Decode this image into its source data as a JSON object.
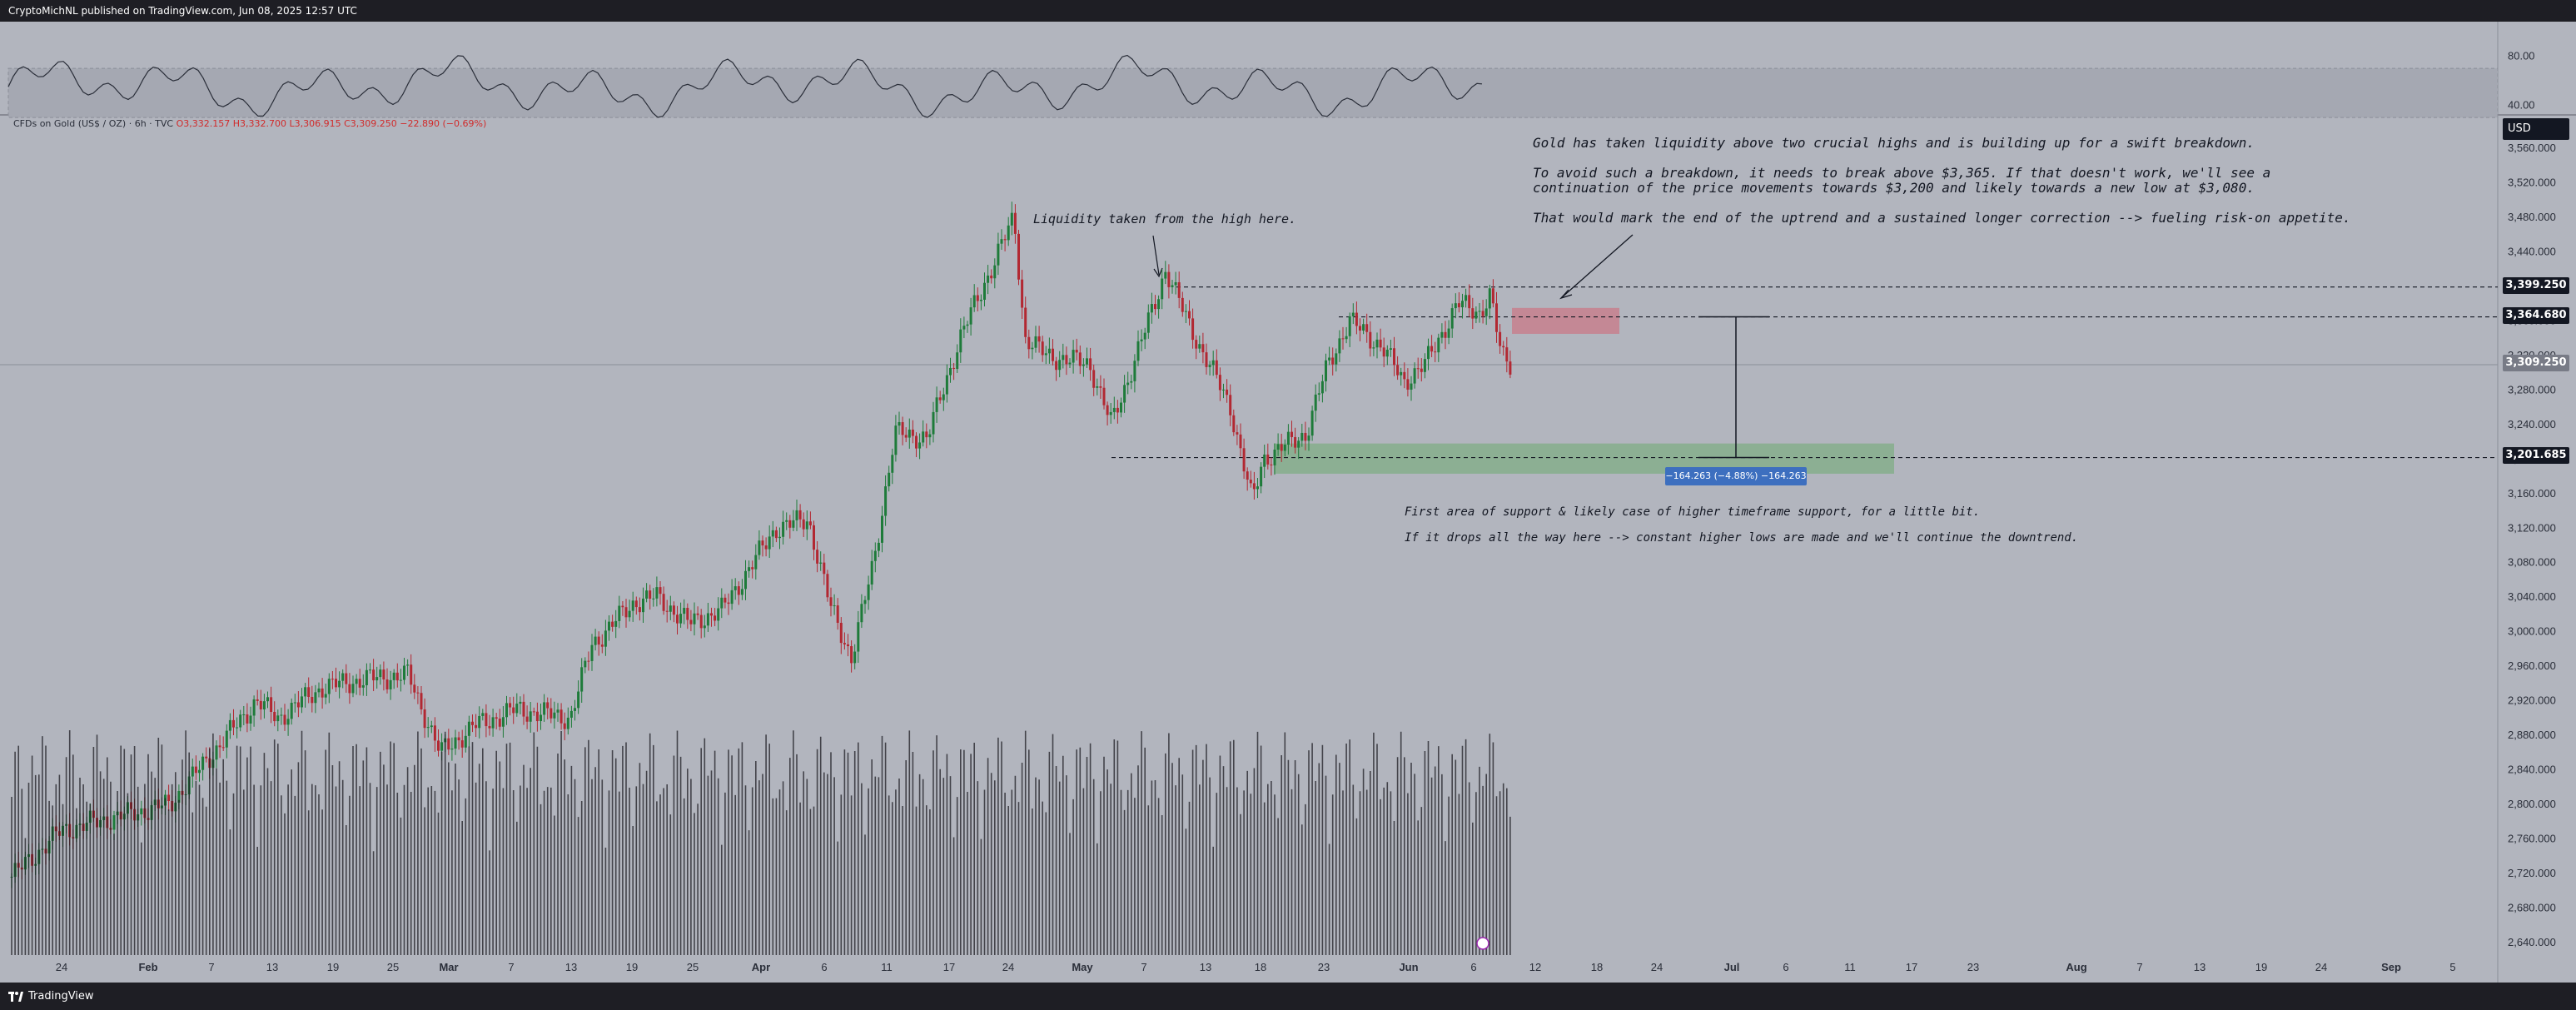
{
  "header": {
    "published_text": "CryptoMichNL published on TradingView.com, Jun 08, 2025 12:57 UTC"
  },
  "footer": {
    "brand": "TradingView"
  },
  "legend": {
    "symbol": "CFDs on Gold (US$ / OZ) · 6h · TVC",
    "open": "O3,332.157",
    "high": "H3,332.700",
    "low": "L3,306.915",
    "close": "C3,309.250",
    "change": "−22.890 (−0.69%)"
  },
  "price_axis": {
    "currency": "USD",
    "ticks": [
      "3,560.000",
      "3,520.000",
      "3,480.000",
      "3,440.000",
      "3,400.000",
      "3,360.000",
      "3,320.000",
      "3,280.000",
      "3,240.000",
      "3,200.000",
      "3,160.000",
      "3,120.000",
      "3,080.000",
      "3,040.000",
      "3,000.000",
      "2,960.000",
      "2,920.000",
      "2,880.000",
      "2,840.000",
      "2,800.000",
      "2,760.000",
      "2,720.000",
      "2,680.000",
      "2,640.000"
    ],
    "labels": {
      "level_high": "3,399.250",
      "level_resist": "3,364.680",
      "current": "3,309.250",
      "level_support": "3,201.685"
    }
  },
  "rsi_axis": {
    "ticks": [
      "80.00",
      "40.00"
    ]
  },
  "time_axis": {
    "ticks": [
      "24",
      "Feb",
      "7",
      "13",
      "19",
      "25",
      "Mar",
      "7",
      "13",
      "19",
      "25",
      "Apr",
      "6",
      "11",
      "17",
      "24",
      "May",
      "7",
      "13",
      "18",
      "23",
      "Jun",
      "6",
      "12",
      "18",
      "24",
      "Jul",
      "6",
      "11",
      "17",
      "23",
      "Aug",
      "7",
      "13",
      "19",
      "24",
      "Sep",
      "5"
    ]
  },
  "annotations": {
    "liquidity": "Liquidity taken from the high here.",
    "main_1": "Gold has taken liquidity above two crucial highs and is building up for a swift breakdown.",
    "main_2a": "To avoid such a breakdown, it needs to break above $3,365. If that doesn't work, we'll see a",
    "main_2b": "continuation of the price movements towards $3,200 and likely towards a new low at $3,080.",
    "main_3": "That would mark the end of the uptrend and a sustained longer correction --> fueling risk-on appetite.",
    "support_1": "First area of support & likely case of higher timeframe support, for a little bit.",
    "support_2": "If it drops all the way here --> constant higher lows are made and we'll continue the downtrend.",
    "measure": "−164.263 (−4.88%) −164.263"
  },
  "colors": {
    "background": "#b2b5be",
    "up_candle": "#1e7b3a",
    "down_candle": "#b22832",
    "resistance_zone": "#c97a87",
    "support_zone": "#7fae84",
    "bar_dark": "#1e1e24"
  },
  "price_anchors": [
    [
      "Jan 18",
      2700
    ],
    [
      "Jan 24",
      2770
    ],
    [
      "Feb 3",
      2800
    ],
    [
      "Feb 7",
      2860
    ],
    [
      "Feb 11",
      2920
    ],
    [
      "Feb 13",
      2900
    ],
    [
      "Feb 17",
      2935
    ],
    [
      "Feb 21",
      2945
    ],
    [
      "Feb 25",
      2950
    ],
    [
      "Feb 28",
      2860
    ],
    [
      "Mar 3",
      2890
    ],
    [
      "Mar 7",
      2910
    ],
    [
      "Mar 12",
      2900
    ],
    [
      "Mar 14",
      2985
    ],
    [
      "Mar 18",
      3035
    ],
    [
      "Mar 20",
      3040
    ],
    [
      "Mar 23",
      3010
    ],
    [
      "Mar 26",
      3025
    ],
    [
      "Mar 31",
      3120
    ],
    [
      "Apr 3",
      3130
    ],
    [
      "Apr 5",
      3030
    ],
    [
      "Apr 7",
      2970
    ],
    [
      "Apr 9",
      3080
    ],
    [
      "Apr 11",
      3230
    ],
    [
      "Apr 14",
      3225
    ],
    [
      "Apr 17",
      3340
    ],
    [
      "Apr 22",
      3480
    ],
    [
      "Apr 23",
      3340
    ],
    [
      "Apr 25",
      3320
    ],
    [
      "Apr 29",
      3310
    ],
    [
      "May 1",
      3240
    ],
    [
      "May 5",
      3380
    ],
    [
      "May 6",
      3420
    ],
    [
      "May 8",
      3360
    ],
    [
      "May 12",
      3260
    ],
    [
      "May 14",
      3150
    ],
    [
      "May 15",
      3200
    ],
    [
      "May 19",
      3230
    ],
    [
      "May 21",
      3310
    ],
    [
      "May 23",
      3360
    ],
    [
      "May 26",
      3330
    ],
    [
      "May 28",
      3290
    ],
    [
      "May 30",
      3310
    ],
    [
      "Jun 2",
      3380
    ],
    [
      "Jun 4",
      3370
    ],
    [
      "Jun 5",
      3390
    ],
    [
      "Jun 6",
      3320
    ],
    [
      "Jun 7",
      3309
    ]
  ]
}
